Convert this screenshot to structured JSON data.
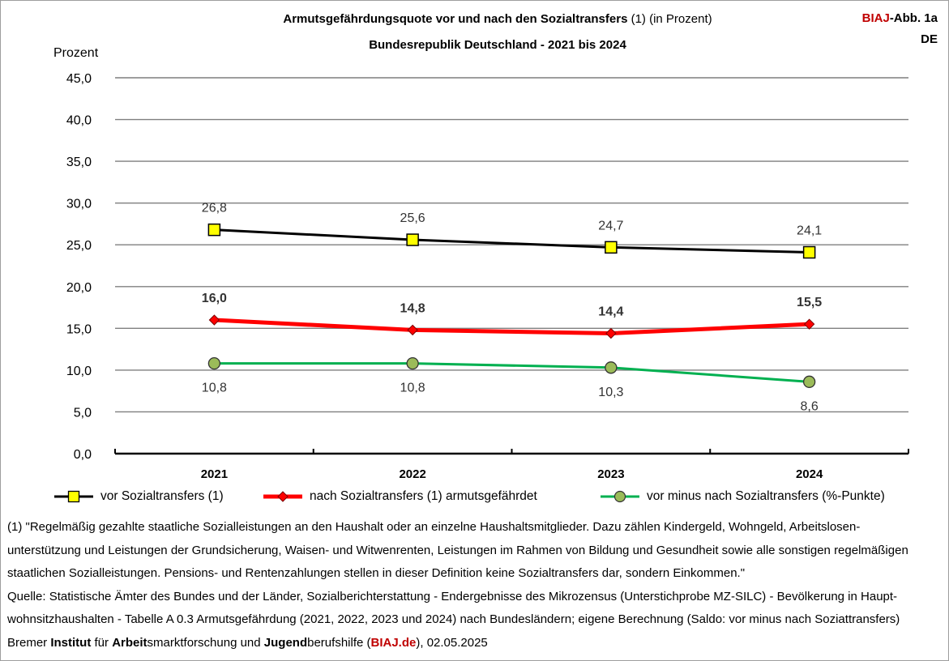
{
  "header": {
    "title_main": "Armutsgefährdungsquote vor und nach den Sozialtransfers",
    "title_note": "(1) (in Prozent)",
    "subtitle": "Bundesrepublik Deutschland - 2021 bis 2024",
    "badge_brand": "BIAJ",
    "badge_suffix": "-Abb. 1a",
    "badge_region": "DE"
  },
  "chart_data": {
    "type": "line",
    "categories": [
      "2021",
      "2022",
      "2023",
      "2024"
    ],
    "ylabel": "Prozent",
    "ylim": [
      0,
      45
    ],
    "ytick_step": 5,
    "ytick_labels": [
      "0,0",
      "5,0",
      "10,0",
      "15,0",
      "20,0",
      "25,0",
      "30,0",
      "35,0",
      "40,0",
      "45,0"
    ],
    "grid": true,
    "legend_position": "bottom",
    "series": [
      {
        "name": "vor Sozialtransfers (1)",
        "values": [
          26.8,
          25.6,
          24.7,
          24.1
        ],
        "labels": [
          "26,8",
          "25,6",
          "24,7",
          "24,1"
        ],
        "line_color": "#000000",
        "marker": "square",
        "marker_color": "#ffff00",
        "label_position": "above",
        "label_bold": false
      },
      {
        "name": "nach Sozialtransfers (1) armutsgefährdet",
        "values": [
          16.0,
          14.8,
          14.4,
          15.5
        ],
        "labels": [
          "16,0",
          "14,8",
          "14,4",
          "15,5"
        ],
        "line_color": "#ff0000",
        "marker": "diamond",
        "marker_color": "#ff0000",
        "label_position": "above",
        "label_bold": true
      },
      {
        "name": "vor minus nach Sozialtransfers (%-Punkte)",
        "values": [
          10.8,
          10.8,
          10.3,
          8.6
        ],
        "labels": [
          "10,8",
          "10,8",
          "10,3",
          "8,6"
        ],
        "line_color": "#00b050",
        "marker": "circle",
        "marker_color": "#9bbb59",
        "label_position": "below",
        "label_bold": false
      }
    ]
  },
  "footnote": {
    "line1": "(1) \"Regelmäßig gezahlte staatliche Sozialleistungen an den Haushalt oder an einzelne Haushaltsmitglieder. Dazu zählen Kindergeld, Wohngeld, Arbeitslosen-",
    "line2": "unterstützung und Leistungen der Grundsicherung, Waisen- und Witwenrenten, Leistungen im Rahmen von Bildung und Gesundheit sowie alle sonstigen regelmäßigen",
    "line3": "staatlichen Sozialleistungen. Pensions- und Rentenzahlungen stellen in dieser Definition keine Sozialtransfers dar, sondern Einkommen.\"",
    "line4": "Quelle: Statistische Ämter des Bundes und der Länder, Sozialberichterstattung - Endergebnisse des Mikrozensus (Unterstichprobe MZ-SILC) - Bevölkerung in Haupt-",
    "line5": "wohnsitzhaushalten - Tabelle A 0.3 Armutsgefährdung (2021, 2022, 2023 und 2024) nach Bundesländern; eigene Berechnung (Saldo: vor minus nach Soziattransfers)"
  },
  "credit": {
    "w1": "Bremer ",
    "w2": "Institut",
    "w3": " für ",
    "w4": "Arbeit",
    "w5": "smarktforschung und ",
    "w6": "Jugend",
    "w7": "berufshilfe (",
    "link": "BIAJ.de",
    "w8": "), 02.05.2025"
  }
}
